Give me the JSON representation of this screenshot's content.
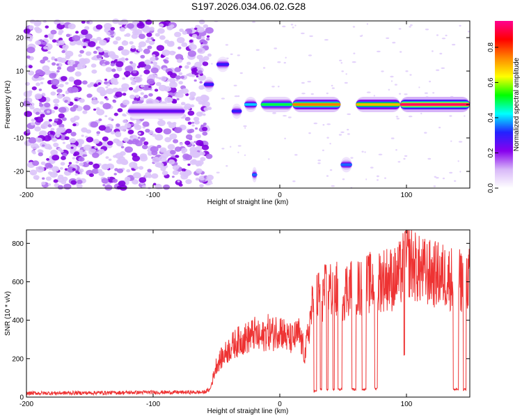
{
  "title": "S197.2026.034.06.02.G28",
  "chart_data": [
    {
      "type": "heatmap",
      "name": "spectrogram",
      "xlabel": "Height of straight line (km)",
      "ylabel": "Frequency (Hz)",
      "xlim": [
        -200,
        150
      ],
      "ylim": [
        -25,
        25
      ],
      "xticks": [
        -200,
        -100,
        0,
        100
      ],
      "yticks": [
        -20,
        -10,
        0,
        10,
        20
      ],
      "colorbar": {
        "label": "Normalized spectral amplitude",
        "range": [
          0.0,
          0.95
        ],
        "ticks": [
          0.0,
          0.2,
          0.4,
          0.6,
          0.8
        ],
        "tick_labels": [
          "0.0",
          "0.2",
          "0.4",
          "0.6",
          "0.8"
        ],
        "colormap": [
          "#ffffff",
          "#d8b8f8",
          "#8800ee",
          "#2222ff",
          "#00ffff",
          "#00ff00",
          "#ffff00",
          "#ff8800",
          "#ff0000",
          "#ff0090"
        ]
      },
      "noise_region_x": [
        -200,
        -55
      ],
      "features": [
        {
          "x0": -120,
          "x1": -75,
          "freq": -2,
          "amplitude": 0.25
        },
        {
          "x0": -60,
          "x1": -52,
          "freq": 6,
          "amplitude": 0.3
        },
        {
          "x0": -50,
          "x1": -40,
          "freq": 12,
          "amplitude": 0.3
        },
        {
          "x0": -38,
          "x1": -30,
          "freq": -2,
          "amplitude": 0.3
        },
        {
          "x0": -28,
          "x1": -18,
          "freq": 0,
          "amplitude": 0.4
        },
        {
          "x0": -22,
          "x1": -18,
          "freq": -21,
          "amplitude": 0.35
        },
        {
          "x0": -15,
          "x1": 10,
          "freq": 0,
          "amplitude": 0.5
        },
        {
          "x0": 10,
          "x1": 48,
          "freq": 0,
          "amplitude": 0.75
        },
        {
          "x0": 48,
          "x1": 57,
          "freq": -18,
          "amplitude": 0.35
        },
        {
          "x0": 60,
          "x1": 95,
          "freq": 0,
          "amplitude": 0.7
        },
        {
          "x0": 95,
          "x1": 150,
          "freq": 0,
          "amplitude": 0.92
        }
      ]
    },
    {
      "type": "line",
      "name": "snr",
      "xlabel": "Height of straight line (km)",
      "ylabel": "SNR (10 * v/v)",
      "xlim": [
        -200,
        150
      ],
      "ylim": [
        0,
        870
      ],
      "xticks": [
        -200,
        -100,
        0,
        100
      ],
      "yticks": [
        0,
        200,
        400,
        600,
        800
      ],
      "color": "#ee3333",
      "series": [
        {
          "name": "SNR",
          "x": [
            -200,
            -150,
            -100,
            -60,
            -55,
            -50,
            -45,
            -40,
            -35,
            -30,
            -25,
            -20,
            -15,
            -10,
            -5,
            0,
            5,
            10,
            15,
            20,
            25,
            30,
            35,
            40,
            45,
            50,
            55,
            60,
            65,
            70,
            75,
            80,
            85,
            90,
            95,
            100,
            110,
            120,
            130,
            135,
            140,
            145,
            150
          ],
          "values": [
            20,
            22,
            25,
            25,
            40,
            170,
            210,
            250,
            280,
            300,
            310,
            330,
            300,
            340,
            330,
            360,
            310,
            300,
            330,
            220,
            450,
            520,
            540,
            560,
            560,
            540,
            580,
            570,
            560,
            590,
            600,
            610,
            620,
            610,
            640,
            720,
            660,
            640,
            630,
            620,
            610,
            600,
            620
          ]
        }
      ],
      "dropouts": [
        {
          "x0": 27,
          "x1": 29,
          "value": 30
        },
        {
          "x0": 32,
          "x1": 33,
          "value": 40
        },
        {
          "x0": 37,
          "x1": 38,
          "value": 40
        },
        {
          "x0": 42,
          "x1": 43,
          "value": 40
        },
        {
          "x0": 46,
          "x1": 49,
          "value": 40
        },
        {
          "x0": 57,
          "x1": 60,
          "value": 40
        },
        {
          "x0": 65,
          "x1": 68,
          "value": 40
        },
        {
          "x0": 75,
          "x1": 77,
          "value": 45
        },
        {
          "x0": 98,
          "x1": 99,
          "value": 220
        },
        {
          "x0": 137,
          "x1": 141,
          "value": 40
        },
        {
          "x0": 145,
          "x1": 147,
          "value": 40
        }
      ]
    }
  ]
}
